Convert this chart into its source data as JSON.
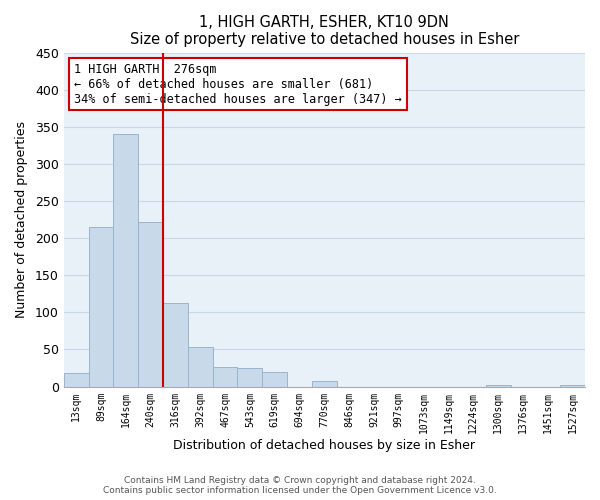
{
  "title": "1, HIGH GARTH, ESHER, KT10 9DN",
  "subtitle": "Size of property relative to detached houses in Esher",
  "xlabel": "Distribution of detached houses by size in Esher",
  "ylabel": "Number of detached properties",
  "bar_color": "#c8d9ea",
  "bar_edge_color": "#9ab4cc",
  "bin_labels": [
    "13sqm",
    "89sqm",
    "164sqm",
    "240sqm",
    "316sqm",
    "392sqm",
    "467sqm",
    "543sqm",
    "619sqm",
    "694sqm",
    "770sqm",
    "846sqm",
    "921sqm",
    "997sqm",
    "1073sqm",
    "1149sqm",
    "1224sqm",
    "1300sqm",
    "1376sqm",
    "1451sqm",
    "1527sqm"
  ],
  "bar_heights": [
    18,
    215,
    340,
    222,
    113,
    53,
    26,
    25,
    20,
    0,
    7,
    0,
    0,
    0,
    0,
    0,
    0,
    2,
    0,
    0,
    2
  ],
  "vline_after_bar": 3,
  "vline_color": "#cc0000",
  "annotation_line1": "1 HIGH GARTH: 276sqm",
  "annotation_line2": "← 66% of detached houses are smaller (681)",
  "annotation_line3": "34% of semi-detached houses are larger (347) →",
  "annotation_box_color": "#ffffff",
  "annotation_box_edge": "#cc0000",
  "ylim": [
    0,
    450
  ],
  "yticks": [
    0,
    50,
    100,
    150,
    200,
    250,
    300,
    350,
    400,
    450
  ],
  "footer1": "Contains HM Land Registry data © Crown copyright and database right 2024.",
  "footer2": "Contains public sector information licensed under the Open Government Licence v3.0.",
  "grid_color": "#c8d8e8",
  "background_color": "#e8f0f8"
}
